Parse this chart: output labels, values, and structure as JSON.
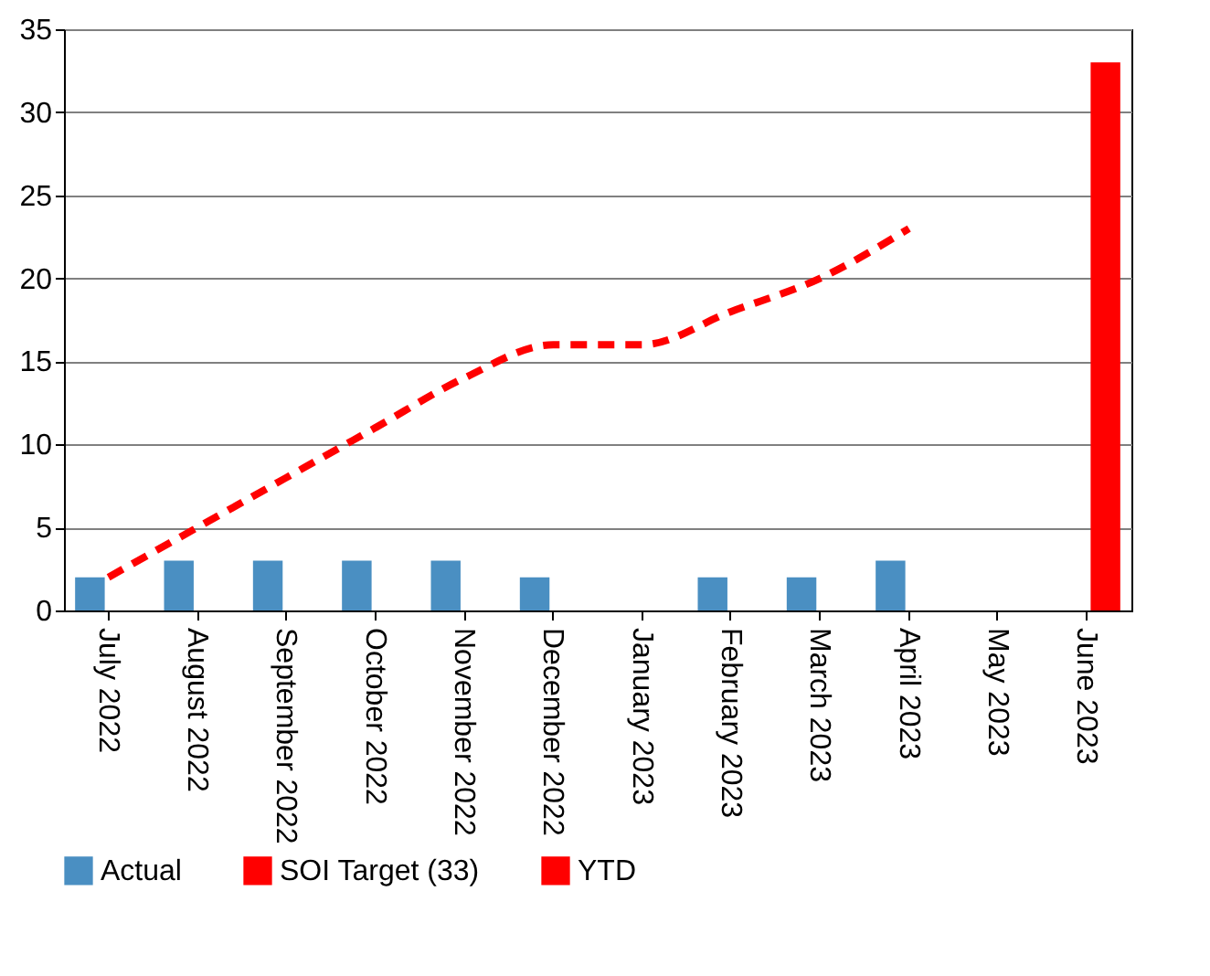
{
  "chart_data": {
    "type": "bar",
    "categories": [
      "July 2022",
      "August 2022",
      "September 2022",
      "October 2022",
      "November 2022",
      "December 2022",
      "January 2023",
      "February 2023",
      "March 2023",
      "April 2023",
      "May 2023",
      "June 2023"
    ],
    "series": [
      {
        "name": "Actual",
        "color": "#4a8fc2",
        "values": [
          2,
          3,
          3,
          3,
          3,
          2,
          null,
          2,
          2,
          3,
          null,
          null
        ]
      },
      {
        "name": "SOI Target (33)",
        "color": "#ff0000",
        "values": [
          null,
          null,
          null,
          null,
          null,
          null,
          null,
          null,
          null,
          null,
          null,
          33
        ]
      },
      {
        "name": "YTD",
        "type": "line",
        "line_style": "dashed",
        "color": "#ff0000",
        "values": [
          2,
          5,
          8,
          11,
          14,
          16,
          16,
          18,
          20,
          23,
          null,
          null
        ]
      }
    ],
    "ylim": [
      0,
      35
    ],
    "yticks": [
      0,
      5,
      10,
      15,
      20,
      25,
      30,
      35
    ],
    "grid": "y",
    "legend": "bottom"
  }
}
